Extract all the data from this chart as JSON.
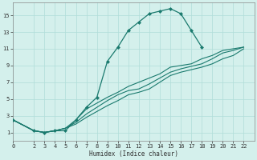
{
  "xlabel": "Humidex (Indice chaleur)",
  "bg_color": "#d4f0ec",
  "grid_color": "#b0ddd8",
  "line_color": "#1a7a6e",
  "xlim": [
    0,
    23
  ],
  "ylim": [
    0,
    16.5
  ],
  "xticks": [
    0,
    2,
    3,
    4,
    5,
    6,
    7,
    8,
    9,
    10,
    11,
    12,
    13,
    14,
    15,
    16,
    17,
    18,
    19,
    20,
    21,
    22
  ],
  "yticks": [
    1,
    3,
    5,
    7,
    9,
    11,
    13,
    15
  ],
  "main_x": [
    0,
    2,
    3,
    4,
    5,
    6,
    7,
    8,
    9,
    10,
    11,
    12,
    13,
    14,
    15,
    16,
    17,
    18
  ],
  "main_y": [
    2.5,
    1.2,
    1.0,
    1.2,
    1.2,
    2.5,
    4.0,
    5.2,
    9.5,
    11.2,
    13.2,
    14.2,
    15.2,
    15.5,
    15.8,
    15.2,
    13.2,
    11.2
  ],
  "diag1_x": [
    0,
    2,
    3,
    4,
    5,
    6,
    7,
    8,
    9,
    10,
    11,
    12,
    13,
    14,
    15,
    16,
    17,
    18,
    19,
    20,
    21,
    22
  ],
  "diag1_y": [
    2.5,
    1.2,
    1.0,
    1.2,
    1.5,
    2.0,
    2.8,
    3.5,
    4.2,
    4.8,
    5.5,
    5.8,
    6.2,
    7.0,
    7.8,
    8.2,
    8.5,
    8.8,
    9.2,
    9.8,
    10.2,
    11.0
  ],
  "diag2_x": [
    0,
    2,
    3,
    4,
    5,
    6,
    7,
    8,
    9,
    10,
    11,
    12,
    13,
    14,
    15,
    16,
    17,
    18,
    19,
    20,
    21,
    22
  ],
  "diag2_y": [
    2.5,
    1.2,
    1.0,
    1.2,
    1.5,
    2.2,
    3.2,
    4.0,
    4.8,
    5.5,
    6.0,
    6.2,
    6.8,
    7.5,
    8.2,
    8.6,
    8.9,
    9.2,
    9.8,
    10.5,
    10.8,
    11.2
  ],
  "diag3_x": [
    0,
    2,
    3,
    4,
    5,
    6,
    7,
    8,
    9,
    10,
    11,
    12,
    13,
    14,
    15,
    16,
    17,
    18,
    19,
    20,
    21,
    22
  ],
  "diag3_y": [
    2.5,
    1.2,
    1.0,
    1.2,
    1.5,
    2.5,
    3.8,
    4.5,
    5.2,
    5.8,
    6.5,
    7.0,
    7.5,
    8.0,
    8.8,
    9.0,
    9.2,
    9.8,
    10.2,
    10.8,
    11.0,
    11.2
  ]
}
